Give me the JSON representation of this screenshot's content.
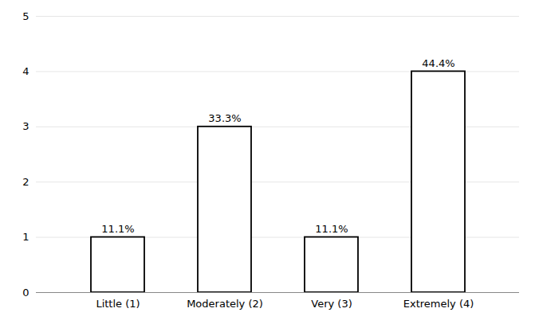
{
  "chart_data": {
    "type": "bar",
    "categories": [
      "Little (1)",
      "Moderately (2)",
      "Very (3)",
      "Extremely (4)"
    ],
    "values": [
      1,
      3,
      1,
      4
    ],
    "value_labels": [
      "11.1%",
      "33.3%",
      "11.1%",
      "44.4%"
    ],
    "color": "#ffffff",
    "ylim": [
      0,
      5
    ],
    "yticks": [
      0,
      1,
      2,
      3,
      4,
      5
    ],
    "grid": true
  }
}
